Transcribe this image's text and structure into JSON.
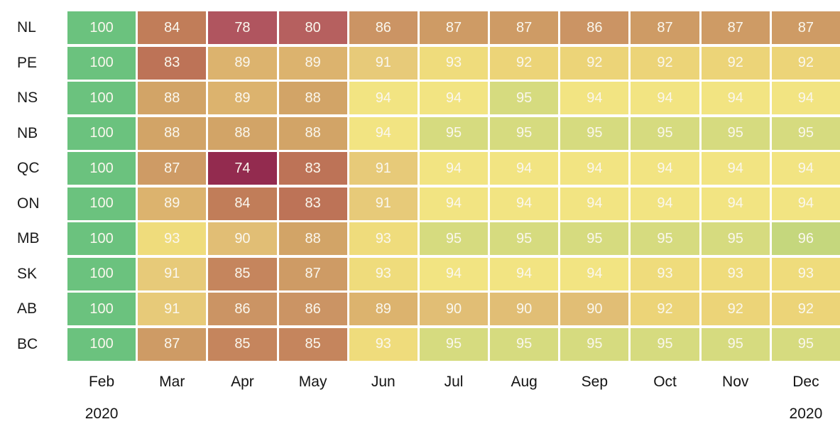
{
  "chart_data": {
    "type": "heatmap",
    "title": "",
    "rows": [
      "NL",
      "PE",
      "NS",
      "NB",
      "QC",
      "ON",
      "MB",
      "SK",
      "AB",
      "BC"
    ],
    "columns": [
      "Feb",
      "Mar",
      "Apr",
      "May",
      "Jun",
      "Jul",
      "Aug",
      "Sep",
      "Oct",
      "Nov",
      "Dec"
    ],
    "column_sublabels": [
      "2020",
      "",
      "",
      "",
      "",
      "",
      "",
      "",
      "",
      "",
      "2020"
    ],
    "values": [
      [
        100,
        84,
        78,
        80,
        86,
        87,
        87,
        86,
        87,
        87,
        87
      ],
      [
        100,
        83,
        89,
        89,
        91,
        93,
        92,
        92,
        92,
        92,
        92
      ],
      [
        100,
        88,
        89,
        88,
        94,
        94,
        95,
        94,
        94,
        94,
        94
      ],
      [
        100,
        88,
        88,
        88,
        94,
        95,
        95,
        95,
        95,
        95,
        95
      ],
      [
        100,
        87,
        74,
        83,
        91,
        94,
        94,
        94,
        94,
        94,
        94
      ],
      [
        100,
        89,
        84,
        83,
        91,
        94,
        94,
        94,
        94,
        94,
        94
      ],
      [
        100,
        93,
        90,
        88,
        93,
        95,
        95,
        95,
        95,
        95,
        96
      ],
      [
        100,
        91,
        85,
        87,
        93,
        94,
        94,
        94,
        93,
        93,
        93
      ],
      [
        100,
        91,
        86,
        86,
        89,
        90,
        90,
        90,
        92,
        92,
        92
      ],
      [
        100,
        87,
        85,
        85,
        93,
        95,
        95,
        95,
        95,
        95,
        95
      ]
    ],
    "value_range": [
      74,
      100
    ],
    "legend": "none",
    "grid": "off",
    "colors": {
      "74": "#932B4F",
      "78": "#B0555F",
      "80": "#B6605F",
      "83": "#BD7357",
      "84": "#C17D59",
      "85": "#C5855D",
      "86": "#CB9464",
      "87": "#CE9B65",
      "88": "#D2A467",
      "89": "#DCB36E",
      "90": "#E1BE75",
      "91": "#E7CA79",
      "92": "#ECD478",
      "93": "#EFDC7C",
      "94": "#F2E482",
      "95": "#D6DB7F",
      "96": "#C5D77D",
      "100": "#6BC27E"
    },
    "cell_text_color": "#FAF7EE",
    "axis_text_color": "#141414",
    "background": "#FFFFFF"
  }
}
